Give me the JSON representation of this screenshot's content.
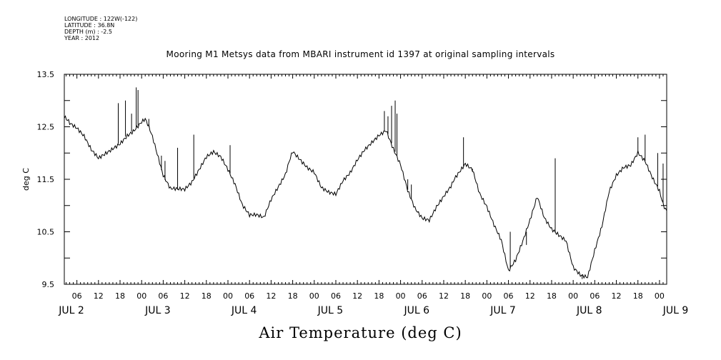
{
  "header": {
    "meta_lines": [
      "LONGITUDE : 122W(-122)",
      "LATITUDE : 36.8N",
      "DEPTH (m) : -2.5",
      "YEAR : 2012"
    ],
    "title": "Mooring M1 Metsys data from MBARI instrument id 1397 at original sampling intervals"
  },
  "footer": {
    "label": "Air Temperature (deg C)"
  },
  "chart_data": {
    "type": "line",
    "title": "Mooring M1 Metsys data from MBARI instrument id 1397 at original sampling intervals",
    "xlabel": "Air Temperature (deg C)",
    "ylabel": "deg C",
    "ylim": [
      9.5,
      13.5
    ],
    "yticks": [
      "9.5",
      "10.5",
      "11.5",
      "12.5",
      "13.5"
    ],
    "x_unit": "hours since JUL 2 00",
    "xlim": [
      2.5,
      170
    ],
    "hour_ticks": [
      "06",
      "12",
      "18",
      "00",
      "06",
      "12",
      "18",
      "00",
      "06",
      "12",
      "18",
      "00",
      "06",
      "12",
      "18",
      "00",
      "06",
      "12",
      "18",
      "00",
      "06",
      "12",
      "18",
      "00",
      "06",
      "12",
      "18",
      "00"
    ],
    "day_labels": [
      "JUL 2",
      "JUL 3",
      "JUL 4",
      "JUL 5",
      "JUL 6",
      "JUL 7",
      "JUL 8",
      "JUL 9"
    ],
    "grid": false,
    "series": [
      {
        "x": [
          2.5,
          4,
          6,
          8,
          10,
          12,
          14,
          16,
          18,
          20,
          22,
          24,
          25,
          26,
          27,
          28,
          29,
          30,
          32,
          34,
          36,
          38,
          40,
          42,
          44,
          46,
          48,
          50,
          52,
          54,
          56,
          58,
          60,
          62,
          64,
          65,
          66,
          68,
          70,
          72,
          74,
          76,
          78,
          80,
          82,
          84,
          86,
          88,
          90,
          92,
          94,
          96,
          98,
          100,
          102,
          104,
          106,
          108,
          110,
          111,
          112,
          114,
          116,
          118,
          120,
          122,
          124,
          126,
          128,
          130,
          132,
          134,
          136,
          138,
          140,
          142,
          144,
          146,
          148,
          150,
          152,
          154,
          156,
          158,
          160,
          162,
          164,
          166,
          168,
          169,
          170
        ],
        "values": [
          12.7,
          12.55,
          12.45,
          12.3,
          12.05,
          11.9,
          12.0,
          12.1,
          12.2,
          12.35,
          12.45,
          12.6,
          12.65,
          12.5,
          12.3,
          12.05,
          11.8,
          11.55,
          11.3,
          11.3,
          11.3,
          11.45,
          11.7,
          11.95,
          12.05,
          11.95,
          11.7,
          11.4,
          11.0,
          10.8,
          10.8,
          10.75,
          11.1,
          11.35,
          11.6,
          11.85,
          12.05,
          11.9,
          11.75,
          11.65,
          11.35,
          11.25,
          11.2,
          11.45,
          11.6,
          11.85,
          12.05,
          12.2,
          12.35,
          12.45,
          12.1,
          11.8,
          11.3,
          10.95,
          10.75,
          10.7,
          10.95,
          11.15,
          11.35,
          11.5,
          11.6,
          11.8,
          11.7,
          11.25,
          11.0,
          10.65,
          10.35,
          9.75,
          9.95,
          10.3,
          10.7,
          11.15,
          10.75,
          10.55,
          10.45,
          10.35,
          9.85,
          9.7,
          9.65,
          10.15,
          10.6,
          11.25,
          11.55,
          11.7,
          11.75,
          12.0,
          11.85,
          11.55,
          11.3,
          11.05,
          10.9
        ],
        "spikes": [
          [
            17.5,
            12.95
          ],
          [
            19.5,
            13.0
          ],
          [
            21.2,
            12.75
          ],
          [
            22.5,
            13.25
          ],
          [
            23,
            13.2
          ],
          [
            26,
            12.65
          ],
          [
            29.5,
            11.95
          ],
          [
            30.5,
            11.85
          ],
          [
            34,
            12.1
          ],
          [
            38.5,
            12.35
          ],
          [
            48.6,
            12.15
          ],
          [
            91.5,
            12.8
          ],
          [
            92.5,
            12.7
          ],
          [
            93.5,
            12.9
          ],
          [
            94.5,
            13.0
          ],
          [
            95,
            12.75
          ],
          [
            98,
            11.5
          ],
          [
            99,
            11.4
          ],
          [
            113.5,
            12.3
          ],
          [
            116,
            11.65
          ],
          [
            126.5,
            10.5
          ],
          [
            131,
            10.25
          ],
          [
            139,
            11.9
          ],
          [
            146.5,
            9.6
          ],
          [
            162,
            12.3
          ],
          [
            164,
            12.35
          ],
          [
            167.5,
            12.0
          ],
          [
            169,
            11.8
          ]
        ]
      }
    ]
  }
}
